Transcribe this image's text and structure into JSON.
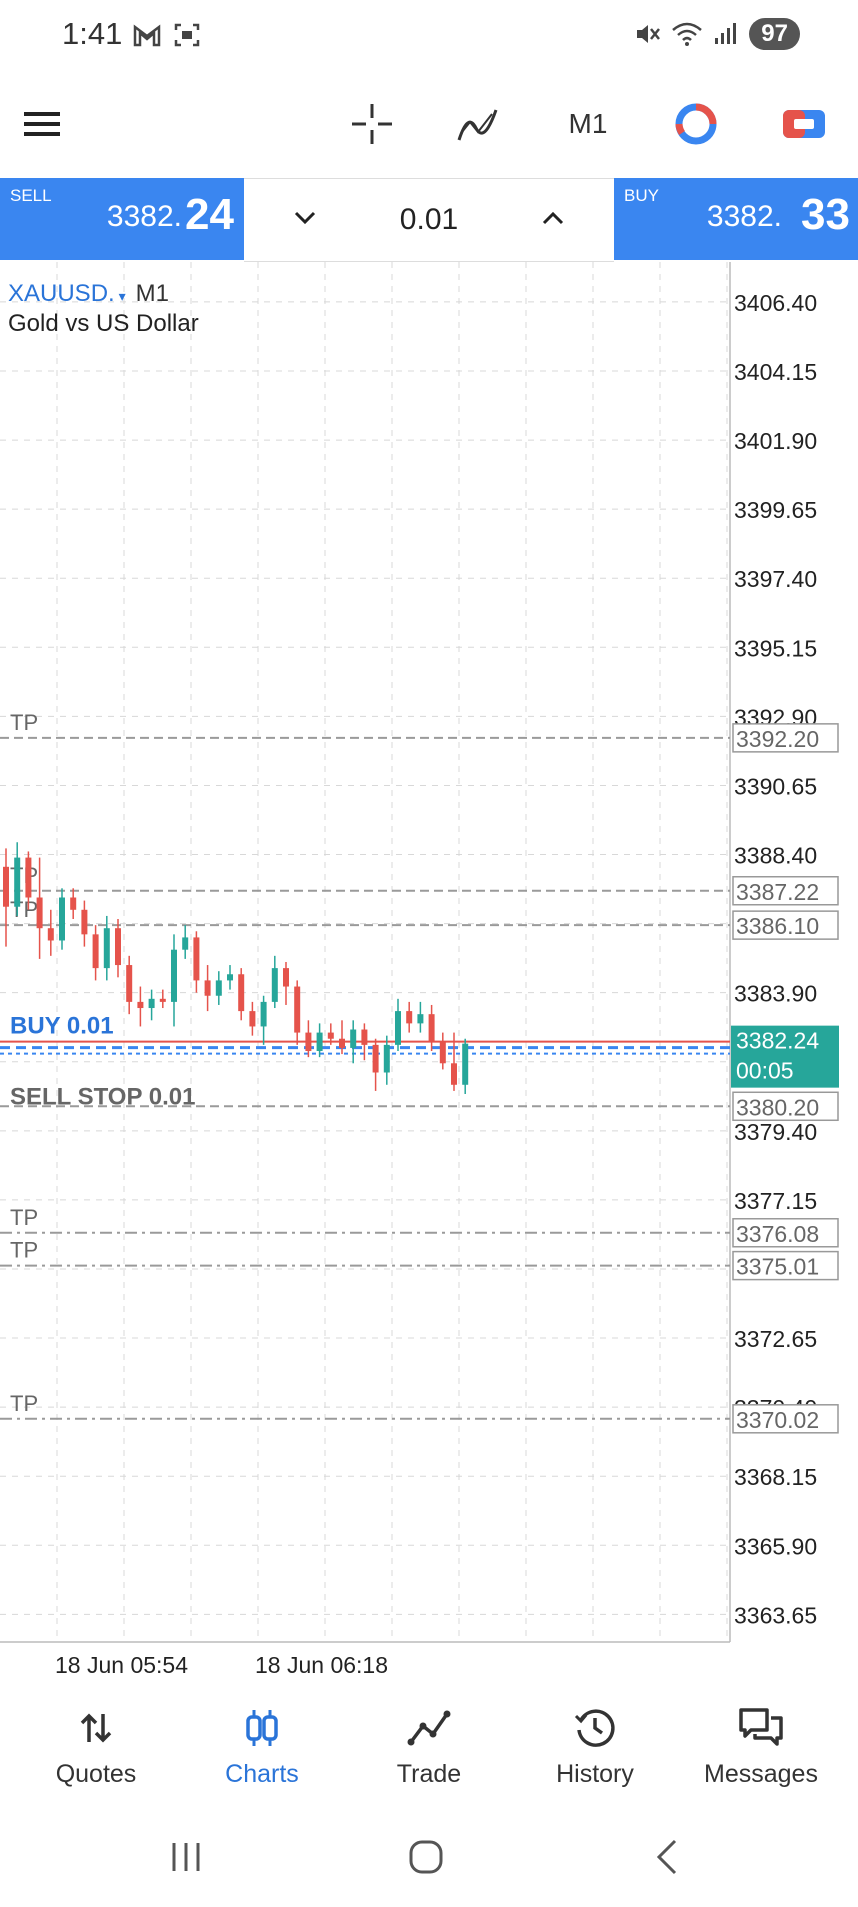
{
  "status_bar": {
    "time": "1:41",
    "battery": "97"
  },
  "toolbar": {
    "timeframe": "M1"
  },
  "trade": {
    "sell_label": "SELL",
    "sell_price_main": "3382.",
    "sell_price_big": "24",
    "buy_label": "BUY",
    "buy_price_main": "3382.",
    "buy_price_big": "33",
    "lot": "0.01"
  },
  "chart": {
    "symbol": "XAUUSD.",
    "symbol_timeframe": "M1",
    "description": "Gold vs US Dollar",
    "price_scale": [
      "3406.40",
      "3404.15",
      "3401.90",
      "3399.65",
      "3397.40",
      "3395.15",
      "3392.90",
      "3390.65",
      "3388.40",
      "3386.15",
      "3383.90",
      "3381.65",
      "3379.40",
      "3377.15",
      "3374.90",
      "3372.65",
      "3370.40",
      "3368.15",
      "3365.90",
      "3363.65"
    ],
    "current_price": "3382.24",
    "countdown": "00:05",
    "order_lines": [
      {
        "label": "TP",
        "price": "3392.20",
        "style": "dash"
      },
      {
        "label": "TP",
        "price": "3387.22",
        "style": "dash"
      },
      {
        "label": "TP",
        "price": "3386.10",
        "style": "dash"
      },
      {
        "label": "BUY 0.01",
        "price": "3382.24",
        "style": "buy"
      },
      {
        "label": "SELL STOP 0.01",
        "price": "3380.20",
        "style": "dash"
      },
      {
        "label": "TP",
        "price": "3376.08",
        "style": "dashdot"
      },
      {
        "label": "TP",
        "price": "3375.01",
        "style": "dashdot"
      },
      {
        "label": "TP",
        "price": "3370.02",
        "style": "dashdot"
      }
    ],
    "time_labels": [
      "18 Jun 05:54",
      "18 Jun 06:18"
    ]
  },
  "chart_data": {
    "type": "candlestick",
    "series": [
      {
        "o": 3388.0,
        "h": 3388.6,
        "l": 3385.4,
        "c": 3386.7
      },
      {
        "o": 3386.7,
        "h": 3388.8,
        "l": 3386.4,
        "c": 3388.3
      },
      {
        "o": 3388.3,
        "h": 3388.5,
        "l": 3386.6,
        "c": 3387.0
      },
      {
        "o": 3387.0,
        "h": 3388.3,
        "l": 3385.0,
        "c": 3386.0
      },
      {
        "o": 3386.0,
        "h": 3386.6,
        "l": 3385.1,
        "c": 3385.6
      },
      {
        "o": 3385.6,
        "h": 3387.3,
        "l": 3385.3,
        "c": 3387.0
      },
      {
        "o": 3387.0,
        "h": 3387.3,
        "l": 3386.3,
        "c": 3386.6
      },
      {
        "o": 3386.6,
        "h": 3386.9,
        "l": 3385.4,
        "c": 3385.8
      },
      {
        "o": 3385.8,
        "h": 3386.1,
        "l": 3384.3,
        "c": 3384.7
      },
      {
        "o": 3384.7,
        "h": 3386.4,
        "l": 3384.3,
        "c": 3386.0
      },
      {
        "o": 3386.0,
        "h": 3386.3,
        "l": 3384.4,
        "c": 3384.8
      },
      {
        "o": 3384.8,
        "h": 3385.1,
        "l": 3383.2,
        "c": 3383.6
      },
      {
        "o": 3383.6,
        "h": 3384.1,
        "l": 3382.8,
        "c": 3383.4
      },
      {
        "o": 3383.4,
        "h": 3384.0,
        "l": 3383.0,
        "c": 3383.7
      },
      {
        "o": 3383.7,
        "h": 3384.0,
        "l": 3383.4,
        "c": 3383.6
      },
      {
        "o": 3383.6,
        "h": 3385.8,
        "l": 3382.8,
        "c": 3385.3
      },
      {
        "o": 3385.3,
        "h": 3386.1,
        "l": 3385.0,
        "c": 3385.7
      },
      {
        "o": 3385.7,
        "h": 3385.9,
        "l": 3383.9,
        "c": 3384.3
      },
      {
        "o": 3384.3,
        "h": 3384.8,
        "l": 3383.3,
        "c": 3383.8
      },
      {
        "o": 3383.8,
        "h": 3384.6,
        "l": 3383.5,
        "c": 3384.3
      },
      {
        "o": 3384.3,
        "h": 3384.8,
        "l": 3384.0,
        "c": 3384.5
      },
      {
        "o": 3384.5,
        "h": 3384.7,
        "l": 3383.0,
        "c": 3383.3
      },
      {
        "o": 3383.3,
        "h": 3383.6,
        "l": 3382.5,
        "c": 3382.8
      },
      {
        "o": 3382.8,
        "h": 3383.8,
        "l": 3382.2,
        "c": 3383.6
      },
      {
        "o": 3383.6,
        "h": 3385.1,
        "l": 3383.4,
        "c": 3384.7
      },
      {
        "o": 3384.7,
        "h": 3384.9,
        "l": 3383.5,
        "c": 3384.1
      },
      {
        "o": 3384.1,
        "h": 3384.3,
        "l": 3382.2,
        "c": 3382.6
      },
      {
        "o": 3382.6,
        "h": 3383.0,
        "l": 3381.8,
        "c": 3382.0
      },
      {
        "o": 3382.0,
        "h": 3382.9,
        "l": 3381.8,
        "c": 3382.6
      },
      {
        "o": 3382.6,
        "h": 3382.9,
        "l": 3382.2,
        "c": 3382.4
      },
      {
        "o": 3382.4,
        "h": 3383.0,
        "l": 3381.9,
        "c": 3382.1
      },
      {
        "o": 3382.1,
        "h": 3383.0,
        "l": 3381.6,
        "c": 3382.7
      },
      {
        "o": 3382.7,
        "h": 3382.9,
        "l": 3381.7,
        "c": 3382.2
      },
      {
        "o": 3382.2,
        "h": 3382.4,
        "l": 3380.7,
        "c": 3381.3
      },
      {
        "o": 3381.3,
        "h": 3382.5,
        "l": 3380.9,
        "c": 3382.2
      },
      {
        "o": 3382.2,
        "h": 3383.7,
        "l": 3382.0,
        "c": 3383.3
      },
      {
        "o": 3383.3,
        "h": 3383.6,
        "l": 3382.6,
        "c": 3382.9
      },
      {
        "o": 3382.9,
        "h": 3383.6,
        "l": 3382.6,
        "c": 3383.2
      },
      {
        "o": 3383.2,
        "h": 3383.5,
        "l": 3382.0,
        "c": 3382.3
      },
      {
        "o": 3382.3,
        "h": 3382.6,
        "l": 3381.4,
        "c": 3381.6
      },
      {
        "o": 3381.6,
        "h": 3382.6,
        "l": 3380.7,
        "c": 3380.9
      },
      {
        "o": 3380.9,
        "h": 3382.4,
        "l": 3380.6,
        "c": 3382.24
      }
    ],
    "y_range": [
      3362.75,
      3407.7
    ],
    "colors": {
      "up": "#26a69a",
      "down": "#e5534b",
      "buy_line": "#3a86f0",
      "sell_line": "#e5534b",
      "grid": "#d8d8d8",
      "order_line": "#9a9a9a",
      "accent": "#3a86f0",
      "price_box": "#26a69a"
    }
  },
  "nav": [
    {
      "label": "Quotes",
      "icon": "quotes-icon",
      "active": false
    },
    {
      "label": "Charts",
      "icon": "charts-icon",
      "active": true
    },
    {
      "label": "Trade",
      "icon": "trade-icon",
      "active": false
    },
    {
      "label": "History",
      "icon": "history-icon",
      "active": false
    },
    {
      "label": "Messages",
      "icon": "messages-icon",
      "active": false
    }
  ]
}
